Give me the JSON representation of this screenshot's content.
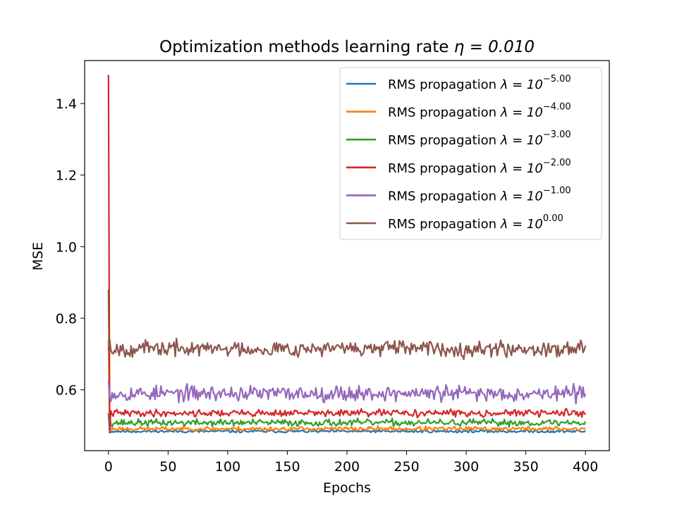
{
  "chart_data": {
    "type": "line",
    "title_text": "Optimization methods learning rate ",
    "title_math": "η = 0.010",
    "xlabel": "Epochs",
    "ylabel": "MSE",
    "xlim": [
      -20,
      420
    ],
    "ylim": [
      0.43,
      1.52
    ],
    "xticks": [
      0,
      50,
      100,
      150,
      200,
      250,
      300,
      350,
      400
    ],
    "xtick_labels": [
      "0",
      "50",
      "100",
      "150",
      "200",
      "250",
      "300",
      "350",
      "400"
    ],
    "yticks": [
      0.6,
      0.8,
      1.0,
      1.2,
      1.4
    ],
    "ytick_labels": [
      "0.6",
      "0.8",
      "1.0",
      "1.2",
      "1.4"
    ],
    "legend_position": "top-right",
    "legend_prefix": "RMS propagation ",
    "legend_math": "λ = 10",
    "series": [
      {
        "name": "lambda-1e-5",
        "exponent": "−5.00",
        "color": "#1f77b4",
        "start": 0.535,
        "early": 0.48,
        "base": 0.484,
        "noise": 0.004,
        "seed": 11
      },
      {
        "name": "lambda-1e-4",
        "exponent": "−4.00",
        "color": "#ff7f0e",
        "start": 0.74,
        "early": 0.485,
        "base": 0.491,
        "noise": 0.006,
        "seed": 23
      },
      {
        "name": "lambda-1e-3",
        "exponent": "−3.00",
        "color": "#2ca02c",
        "start": 0.88,
        "early": 0.535,
        "base": 0.508,
        "noise": 0.009,
        "seed": 37
      },
      {
        "name": "lambda-1e-2",
        "exponent": "−2.00",
        "color": "#d62728",
        "start": 1.48,
        "early": 0.485,
        "base": 0.535,
        "noise": 0.009,
        "seed": 41
      },
      {
        "name": "lambda-1e-1",
        "exponent": "−1.00",
        "color": "#9467bd",
        "start": 0.625,
        "early": 0.58,
        "base": 0.59,
        "noise": 0.02,
        "seed": 53
      },
      {
        "name": "lambda-1e0",
        "exponent": "0.00",
        "color": "#8c564b",
        "start": 0.71,
        "early": 0.74,
        "base": 0.715,
        "noise": 0.02,
        "seed": 67
      }
    ],
    "epochs": 401
  }
}
